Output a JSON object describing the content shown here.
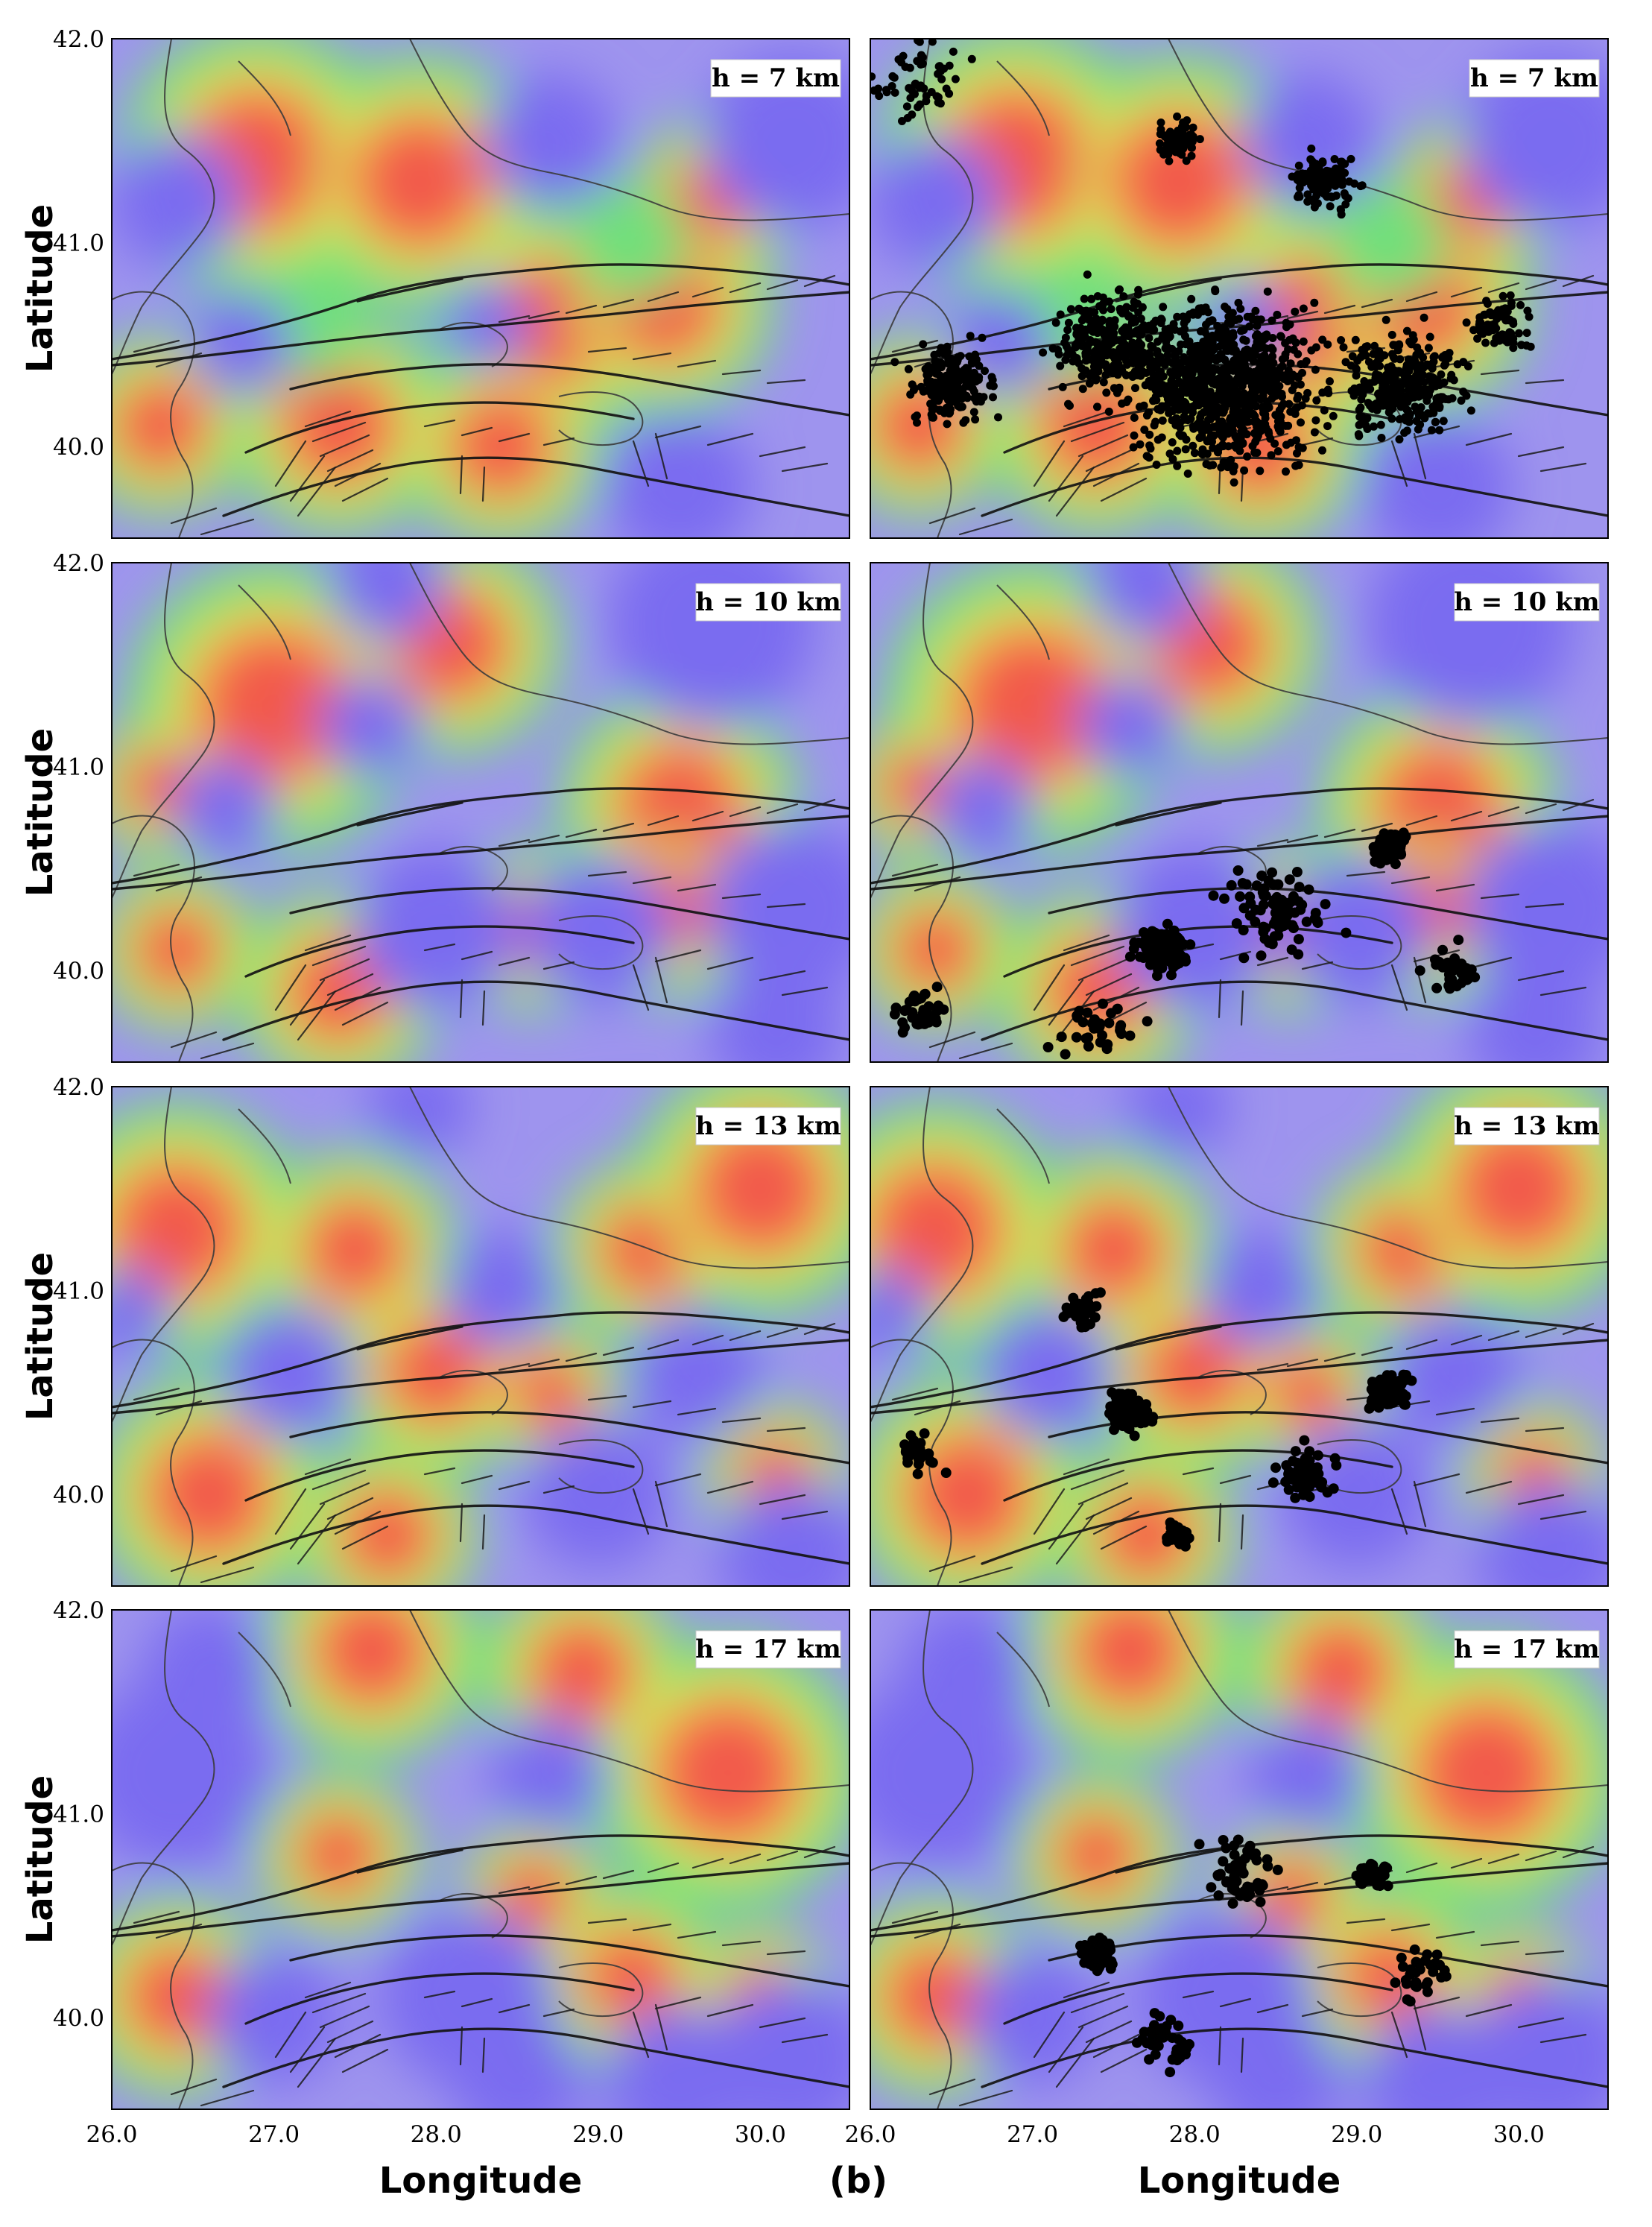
{
  "figure": {
    "panel_tag": "(b)",
    "y_axis_title": "Latitude",
    "x_axis_title": "Longitude",
    "lat_ticks": [
      "42.0",
      "41.0",
      "40.0"
    ],
    "lon_ticks": [
      "26.0",
      "27.0",
      "28.0",
      "29.0",
      "30.0"
    ]
  },
  "depth_labels": [
    "h = 7 km",
    "h = 10 km",
    "h = 13 km",
    "h = 17 km"
  ],
  "colors": {
    "high": "#f25a4c",
    "mid_high": "#ffb347",
    "mid": "#b8f060",
    "mid_low": "#6fe07a",
    "low": "#7a6cf0",
    "background": "#9e94ee",
    "faults": "#141414",
    "epicenters": "#000000"
  },
  "icons": [
    "earthquake-epicenter-dot"
  ],
  "chart_data": {
    "type": "heatmap",
    "x_range": [
      26.0,
      30.55
    ],
    "y_range": [
      39.55,
      42.0
    ],
    "x_unit": "Longitude",
    "y_unit": "Latitude",
    "rows": [
      "h = 7 km",
      "h = 10 km",
      "h = 13 km",
      "h = 17 km"
    ],
    "columns": [
      "without epicenters",
      "with epicenters"
    ],
    "colormap": [
      "low (purple-blue)",
      "green",
      "yellow",
      "high (red)"
    ]
  }
}
